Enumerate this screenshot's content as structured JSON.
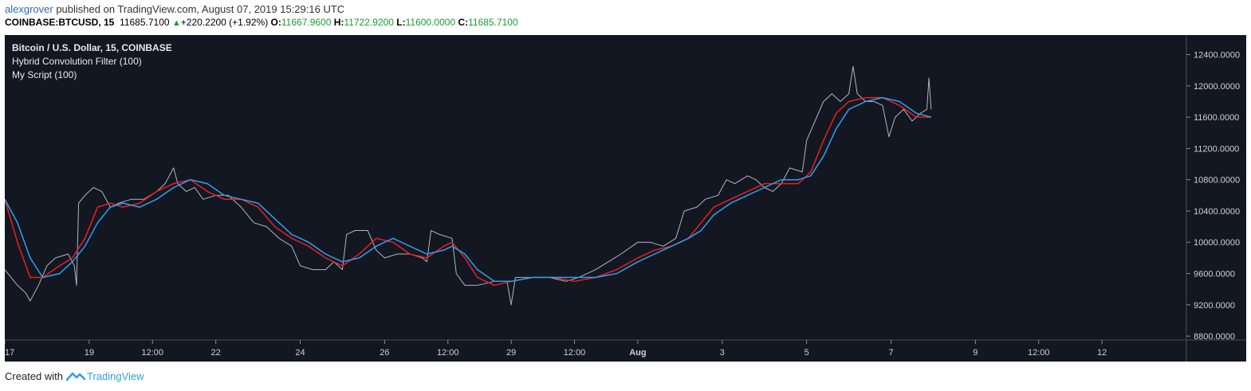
{
  "header": {
    "author": "alexgrover",
    "published": "published on TradingView.com, August 07, 2019 15:29:16 UTC",
    "symbol": "COINBASE:BTCUSD, 15",
    "last": "11685.7100",
    "change": "+220.2200 (+1.92%)",
    "o_label": "O:",
    "o_value": "11667.9600",
    "h_label": "H:",
    "h_value": "11722.9200",
    "l_label": "L:",
    "l_value": "11600.0000",
    "c_label": "C:",
    "c_value": "11685.7100"
  },
  "footer": {
    "created_with": "Created with",
    "brand": "TradingView"
  },
  "colors": {
    "background": "#131722",
    "price": "#b2b5be",
    "hybrid_filter": "#e8201f",
    "my_script": "#2f9ff0",
    "axis_border": "#363a45"
  },
  "chart_data": {
    "type": "line",
    "title": "Bitcoin / U.S. Dollar, 15, COINBASE",
    "legend": [
      "Hybrid Convolution Filter (100)",
      "My Script (100)"
    ],
    "legend_position": "top-left",
    "ylim": [
      8750,
      12650
    ],
    "yticks": [
      8800,
      9200,
      9600,
      10000,
      10400,
      10800,
      11200,
      11600,
      12000,
      12400
    ],
    "ytick_labels": [
      "8800.0000",
      "9200.0000",
      "9600.0000",
      "10000.0000",
      "10400.0000",
      "10800.0000",
      "11200.0000",
      "11600.0000",
      "12000.0000",
      "12400.0000"
    ],
    "xlim": [
      0,
      28
    ],
    "xticks": [
      {
        "x": 0,
        "label": "17"
      },
      {
        "x": 2,
        "label": "19"
      },
      {
        "x": 3.5,
        "label": "12:00"
      },
      {
        "x": 5,
        "label": "22"
      },
      {
        "x": 7,
        "label": "24"
      },
      {
        "x": 9,
        "label": "26"
      },
      {
        "x": 10.5,
        "label": "12:00"
      },
      {
        "x": 12,
        "label": "29"
      },
      {
        "x": 13.5,
        "label": "12:00"
      },
      {
        "x": 15,
        "label": "Aug"
      },
      {
        "x": 17,
        "label": "3"
      },
      {
        "x": 19,
        "label": "5"
      },
      {
        "x": 21,
        "label": "7"
      },
      {
        "x": 23,
        "label": "9"
      },
      {
        "x": 24.5,
        "label": "12:00"
      },
      {
        "x": 26,
        "label": "12"
      }
    ],
    "grid": false,
    "series": [
      {
        "name": "",
        "values": [
          [
            0,
            9650
          ],
          [
            0.3,
            9450
          ],
          [
            0.5,
            9350
          ],
          [
            0.6,
            9250
          ],
          [
            0.8,
            9450
          ],
          [
            1.0,
            9700
          ],
          [
            1.2,
            9800
          ],
          [
            1.5,
            9850
          ],
          [
            1.65,
            9700
          ],
          [
            1.7,
            9450
          ],
          [
            1.75,
            10500
          ],
          [
            1.9,
            10600
          ],
          [
            2.1,
            10700
          ],
          [
            2.3,
            10650
          ],
          [
            2.5,
            10450
          ],
          [
            2.7,
            10500
          ],
          [
            3.0,
            10550
          ],
          [
            3.3,
            10550
          ],
          [
            3.6,
            10650
          ],
          [
            3.8,
            10750
          ],
          [
            3.9,
            10850
          ],
          [
            4.0,
            10950
          ],
          [
            4.1,
            10750
          ],
          [
            4.3,
            10650
          ],
          [
            4.5,
            10700
          ],
          [
            4.7,
            10550
          ],
          [
            5.0,
            10600
          ],
          [
            5.3,
            10600
          ],
          [
            5.6,
            10450
          ],
          [
            5.9,
            10250
          ],
          [
            6.2,
            10200
          ],
          [
            6.5,
            10050
          ],
          [
            6.8,
            9950
          ],
          [
            7.0,
            9700
          ],
          [
            7.3,
            9650
          ],
          [
            7.6,
            9650
          ],
          [
            7.8,
            9750
          ],
          [
            8.0,
            9650
          ],
          [
            8.1,
            10100
          ],
          [
            8.3,
            10150
          ],
          [
            8.6,
            10150
          ],
          [
            8.8,
            9900
          ],
          [
            9.0,
            9800
          ],
          [
            9.3,
            9850
          ],
          [
            9.6,
            9850
          ],
          [
            9.9,
            9800
          ],
          [
            10.0,
            9750
          ],
          [
            10.1,
            10150
          ],
          [
            10.3,
            10100
          ],
          [
            10.6,
            10050
          ],
          [
            10.7,
            9600
          ],
          [
            10.9,
            9450
          ],
          [
            11.2,
            9450
          ],
          [
            11.6,
            9500
          ],
          [
            11.9,
            9500
          ],
          [
            12.0,
            9200
          ],
          [
            12.1,
            9550
          ],
          [
            12.5,
            9550
          ],
          [
            12.9,
            9550
          ],
          [
            13.3,
            9500
          ],
          [
            13.6,
            9550
          ],
          [
            14.0,
            9650
          ],
          [
            14.3,
            9750
          ],
          [
            14.6,
            9850
          ],
          [
            15.0,
            10000
          ],
          [
            15.3,
            10000
          ],
          [
            15.6,
            9950
          ],
          [
            15.9,
            10050
          ],
          [
            16.1,
            10400
          ],
          [
            16.4,
            10450
          ],
          [
            16.6,
            10550
          ],
          [
            16.9,
            10600
          ],
          [
            17.1,
            10800
          ],
          [
            17.3,
            10750
          ],
          [
            17.6,
            10850
          ],
          [
            17.8,
            10800
          ],
          [
            18.0,
            10700
          ],
          [
            18.2,
            10650
          ],
          [
            18.4,
            10750
          ],
          [
            18.6,
            10950
          ],
          [
            18.9,
            10900
          ],
          [
            19.0,
            11300
          ],
          [
            19.2,
            11550
          ],
          [
            19.4,
            11800
          ],
          [
            19.6,
            11900
          ],
          [
            19.8,
            11800
          ],
          [
            20.0,
            11900
          ],
          [
            20.1,
            12250
          ],
          [
            20.2,
            11900
          ],
          [
            20.4,
            11800
          ],
          [
            20.6,
            11800
          ],
          [
            20.8,
            11750
          ],
          [
            20.95,
            11350
          ],
          [
            21.1,
            11600
          ],
          [
            21.3,
            11700
          ],
          [
            21.5,
            11550
          ],
          [
            21.7,
            11650
          ],
          [
            21.85,
            11700
          ],
          [
            21.9,
            12100
          ],
          [
            21.95,
            11700
          ]
        ]
      },
      {
        "name": "",
        "values": [
          [
            0,
            10550
          ],
          [
            0.3,
            10000
          ],
          [
            0.6,
            9550
          ],
          [
            0.9,
            9550
          ],
          [
            1.3,
            9700
          ],
          [
            1.6,
            9800
          ],
          [
            1.9,
            10050
          ],
          [
            2.2,
            10450
          ],
          [
            2.5,
            10500
          ],
          [
            2.8,
            10450
          ],
          [
            3.2,
            10500
          ],
          [
            3.6,
            10650
          ],
          [
            4.0,
            10750
          ],
          [
            4.4,
            10800
          ],
          [
            4.8,
            10650
          ],
          [
            5.2,
            10550
          ],
          [
            5.6,
            10550
          ],
          [
            6.0,
            10450
          ],
          [
            6.4,
            10200
          ],
          [
            6.8,
            10050
          ],
          [
            7.2,
            9950
          ],
          [
            7.6,
            9800
          ],
          [
            8.0,
            9700
          ],
          [
            8.4,
            9850
          ],
          [
            8.8,
            10050
          ],
          [
            9.2,
            10000
          ],
          [
            9.6,
            9850
          ],
          [
            10.0,
            9800
          ],
          [
            10.4,
            9950
          ],
          [
            10.6,
            10000
          ],
          [
            10.9,
            9800
          ],
          [
            11.2,
            9550
          ],
          [
            11.6,
            9450
          ],
          [
            12.0,
            9500
          ],
          [
            12.5,
            9550
          ],
          [
            13.0,
            9550
          ],
          [
            13.5,
            9500
          ],
          [
            14.0,
            9550
          ],
          [
            14.5,
            9650
          ],
          [
            15.0,
            9800
          ],
          [
            15.4,
            9900
          ],
          [
            15.8,
            9950
          ],
          [
            16.2,
            10050
          ],
          [
            16.5,
            10250
          ],
          [
            16.8,
            10450
          ],
          [
            17.2,
            10550
          ],
          [
            17.6,
            10650
          ],
          [
            18.0,
            10750
          ],
          [
            18.4,
            10750
          ],
          [
            18.8,
            10750
          ],
          [
            19.1,
            10900
          ],
          [
            19.4,
            11300
          ],
          [
            19.7,
            11650
          ],
          [
            20.0,
            11800
          ],
          [
            20.4,
            11850
          ],
          [
            20.8,
            11850
          ],
          [
            21.2,
            11750
          ],
          [
            21.6,
            11600
          ],
          [
            21.95,
            11600
          ]
        ]
      },
      {
        "name": "",
        "values": [
          [
            0,
            10550
          ],
          [
            0.3,
            10250
          ],
          [
            0.6,
            9800
          ],
          [
            0.9,
            9550
          ],
          [
            1.3,
            9600
          ],
          [
            1.6,
            9750
          ],
          [
            1.9,
            9950
          ],
          [
            2.2,
            10250
          ],
          [
            2.5,
            10450
          ],
          [
            2.8,
            10500
          ],
          [
            3.2,
            10450
          ],
          [
            3.6,
            10550
          ],
          [
            4.0,
            10700
          ],
          [
            4.4,
            10800
          ],
          [
            4.8,
            10750
          ],
          [
            5.2,
            10600
          ],
          [
            5.6,
            10550
          ],
          [
            6.0,
            10500
          ],
          [
            6.4,
            10300
          ],
          [
            6.8,
            10100
          ],
          [
            7.2,
            10000
          ],
          [
            7.6,
            9850
          ],
          [
            8.0,
            9750
          ],
          [
            8.4,
            9800
          ],
          [
            8.8,
            9950
          ],
          [
            9.2,
            10050
          ],
          [
            9.6,
            9950
          ],
          [
            10.0,
            9850
          ],
          [
            10.4,
            9900
          ],
          [
            10.6,
            9950
          ],
          [
            10.9,
            9850
          ],
          [
            11.2,
            9650
          ],
          [
            11.6,
            9500
          ],
          [
            12.0,
            9500
          ],
          [
            12.5,
            9550
          ],
          [
            13.0,
            9550
          ],
          [
            13.5,
            9550
          ],
          [
            14.0,
            9550
          ],
          [
            14.5,
            9600
          ],
          [
            15.0,
            9750
          ],
          [
            15.4,
            9850
          ],
          [
            15.8,
            9950
          ],
          [
            16.2,
            10050
          ],
          [
            16.5,
            10150
          ],
          [
            16.8,
            10350
          ],
          [
            17.2,
            10500
          ],
          [
            17.6,
            10600
          ],
          [
            18.0,
            10700
          ],
          [
            18.4,
            10800
          ],
          [
            18.8,
            10800
          ],
          [
            19.1,
            10850
          ],
          [
            19.4,
            11100
          ],
          [
            19.7,
            11450
          ],
          [
            20.0,
            11700
          ],
          [
            20.4,
            11800
          ],
          [
            20.8,
            11850
          ],
          [
            21.2,
            11800
          ],
          [
            21.6,
            11650
          ],
          [
            21.95,
            11600
          ]
        ]
      }
    ]
  }
}
